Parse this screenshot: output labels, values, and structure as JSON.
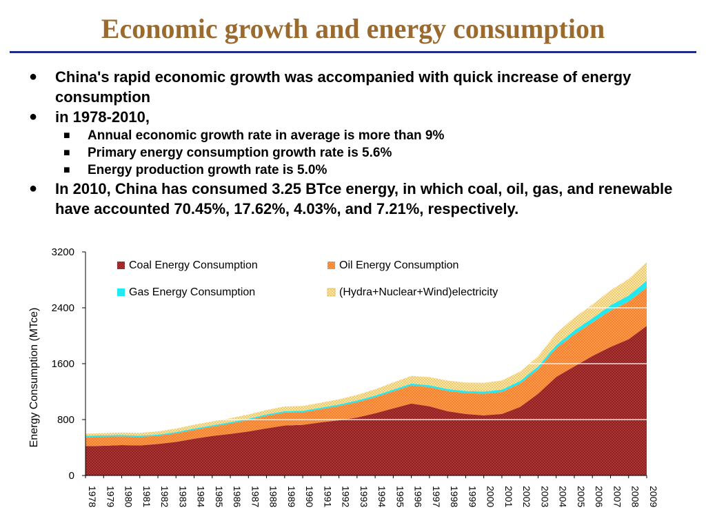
{
  "slide": {
    "title": "Economic growth and energy consumption",
    "bullets": [
      {
        "marker": "●",
        "level": 1,
        "text": "China's rapid economic growth was accompanied with quick  increase of energy consumption"
      },
      {
        "marker": "●",
        "level": 1,
        "text": "in 1978-2010,"
      },
      {
        "marker": "■",
        "level": 2,
        "text": "Annual economic growth rate in average is more than 9%"
      },
      {
        "marker": "■",
        "level": 2,
        "text": "Primary energy consumption growth rate is 5.6%"
      },
      {
        "marker": "■",
        "level": 2,
        "text": "Energy production growth rate is 5.0%"
      },
      {
        "marker": "●",
        "level": 1,
        "text": "In 2010, China has consumed 3.25 BTce energy, in which coal, oil, gas, and renewable have accounted 70.45%, 17.62%, 4.03%, and 7.21%, respectively."
      }
    ]
  },
  "chart_data": {
    "type": "area",
    "stacked": true,
    "title": "",
    "xlabel": "",
    "ylabel": "Energy Consumption (MTce)",
    "ylim": [
      0,
      3200
    ],
    "yticks": [
      0,
      800,
      1600,
      2400,
      3200
    ],
    "grid": true,
    "legend_position": "top-left inside plot, two columns",
    "x": [
      "1978",
      "1979",
      "1980",
      "1981",
      "1982",
      "1983",
      "1984",
      "1985",
      "1986",
      "1987",
      "1988",
      "1989",
      "1990",
      "1991",
      "1992",
      "1993",
      "1994",
      "1995",
      "1996",
      "1997",
      "1998",
      "1999",
      "2000",
      "2001",
      "2002",
      "2003",
      "2004",
      "2005",
      "2006",
      "2007",
      "2008",
      "2009"
    ],
    "series": [
      {
        "name": "Coal Energy Consumption",
        "color": "#8B1A1A",
        "values": [
          420,
          425,
          435,
          430,
          450,
          480,
          525,
          565,
          595,
          630,
          675,
          715,
          725,
          760,
          790,
          830,
          890,
          960,
          1030,
          990,
          920,
          880,
          860,
          880,
          980,
          1170,
          1410,
          1560,
          1710,
          1840,
          1950,
          2140
        ]
      },
      {
        "name": "Oil Energy Consumption",
        "color": "#F57A1E",
        "values": [
          130,
          130,
          125,
          122,
          120,
          125,
          130,
          135,
          150,
          165,
          180,
          185,
          180,
          190,
          205,
          220,
          230,
          245,
          260,
          275,
          290,
          300,
          310,
          315,
          335,
          350,
          410,
          460,
          480,
          520,
          540,
          550
        ]
      },
      {
        "name": "Gas Energy Consumption",
        "color": "#22E8F0",
        "values": [
          18,
          19,
          19,
          17,
          16,
          16,
          17,
          17,
          18,
          18,
          19,
          20,
          21,
          21,
          21,
          23,
          24,
          25,
          25,
          27,
          28,
          29,
          30,
          34,
          36,
          40,
          45,
          55,
          60,
          75,
          85,
          95
        ]
      },
      {
        "name": "(Hydra+Nuclear+Wind)electricity",
        "color": "#F5D98A",
        "values": [
          30,
          33,
          35,
          40,
          45,
          50,
          55,
          55,
          57,
          60,
          63,
          68,
          70,
          71,
          74,
          80,
          90,
          100,
          110,
          115,
          120,
          120,
          125,
          130,
          135,
          145,
          170,
          185,
          195,
          215,
          235,
          270
        ]
      }
    ]
  }
}
